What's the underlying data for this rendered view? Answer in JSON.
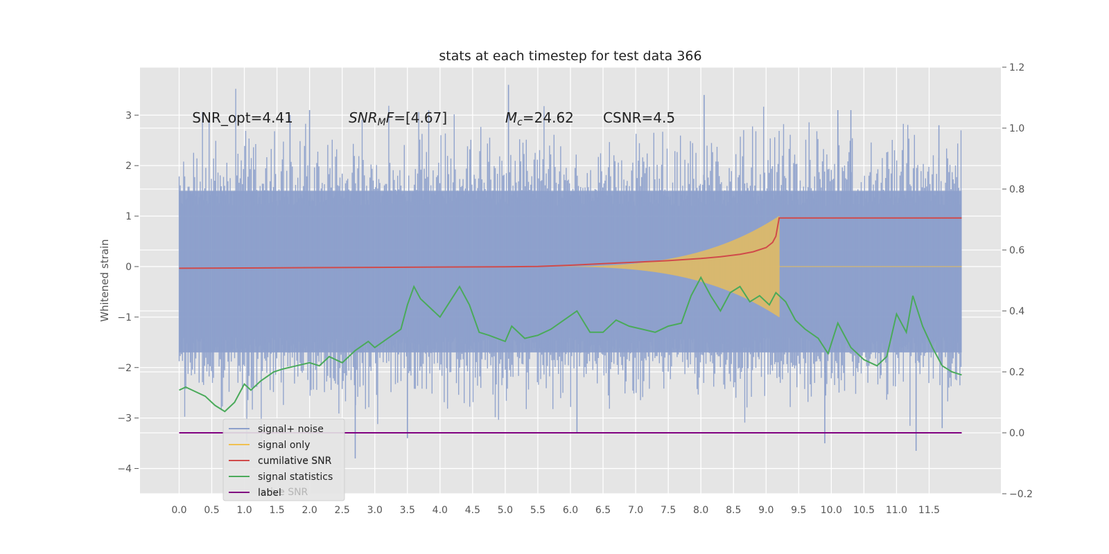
{
  "chart_data": {
    "type": "line",
    "title": "stats at each timestep for test data 366",
    "xlabel": "",
    "ylabel": "Whitened strain",
    "xlim": [
      -0.6,
      12.6
    ],
    "ylim": [
      -4.5,
      3.95
    ],
    "y2lim": [
      -0.2,
      1.2
    ],
    "grid": true,
    "x_ticks": [
      "0.0",
      "0.5",
      "1.0",
      "1.5",
      "2.0",
      "2.5",
      "3.0",
      "3.5",
      "4.0",
      "4.5",
      "5.0",
      "5.5",
      "6.0",
      "6.5",
      "7.0",
      "7.5",
      "8.0",
      "8.5",
      "9.0",
      "9.5",
      "10.0",
      "10.5",
      "11.0",
      "11.5"
    ],
    "y_ticks": [
      "3",
      "2",
      "1",
      "0",
      "−1",
      "−2",
      "−3",
      "−4"
    ],
    "y_tick_values": [
      3,
      2,
      1,
      0,
      -1,
      -2,
      -3,
      -4
    ],
    "y2_ticks": [
      "1.2",
      "1.0",
      "0.8",
      "0.6",
      "0.4",
      "0.2",
      "0.0",
      "−0.2"
    ],
    "y2_tick_values": [
      1.2,
      1.0,
      0.8,
      0.6,
      0.4,
      0.2,
      0.0,
      -0.2
    ],
    "annotations": [
      {
        "name": "snr-opt",
        "parts": [
          {
            "t": "SNR_opt=4.41"
          }
        ],
        "x": 0.2,
        "y": 2.85
      },
      {
        "name": "snr-mf",
        "parts": [
          {
            "t": "SNR",
            "i": true
          },
          {
            "t": "M",
            "i": true,
            "sub": true
          },
          {
            "t": "F",
            "i": true
          },
          {
            "t": "=[4.67]"
          }
        ],
        "x": 2.6,
        "y": 2.85
      },
      {
        "name": "mc",
        "parts": [
          {
            "t": "M",
            "i": true
          },
          {
            "t": "c",
            "i": true,
            "sub": true
          },
          {
            "t": "=24.62"
          }
        ],
        "x": 5.0,
        "y": 2.85
      },
      {
        "name": "csnr",
        "parts": [
          {
            "t": "CSNR=4.5"
          }
        ],
        "x": 6.5,
        "y": 2.85
      }
    ],
    "legend": {
      "placement": "lower-left",
      "entries": [
        {
          "label": "signal+ noise",
          "color": "#8da0cb"
        },
        {
          "label": "signal only",
          "color": "#f0c050"
        },
        {
          "label": "cumilative SNR",
          "color": "#d04a4a"
        },
        {
          "label": "signal statistics",
          "color": "#4aaa5a"
        },
        {
          "label": "label",
          "color": "#800080"
        }
      ],
      "ghost_text": [
        "cumilative SNR",
        "lative SNR"
      ]
    },
    "series": [
      {
        "name": "signal+ noise",
        "axis": "left",
        "color": "#8da0cb",
        "style": "noise",
        "x_range": [
          0.0,
          12.0
        ],
        "band_lo": -1.7,
        "band_hi": 1.5,
        "spikes": [
          {
            "x": 1.7,
            "y": 3.0
          },
          {
            "x": 2.0,
            "y": 3.1
          },
          {
            "x": 5.05,
            "y": 3.6
          },
          {
            "x": 8.05,
            "y": 3.4
          },
          {
            "x": 10.1,
            "y": 3.1
          },
          {
            "x": 10.3,
            "y": 3.1
          },
          {
            "x": 11.65,
            "y": 2.8
          },
          {
            "x": 2.7,
            "y": -3.8
          },
          {
            "x": 3.5,
            "y": -3.4
          },
          {
            "x": 6.1,
            "y": -3.3
          },
          {
            "x": 9.9,
            "y": -3.5
          },
          {
            "x": 11.3,
            "y": -3.65
          },
          {
            "x": 11.7,
            "y": -3.2
          },
          {
            "x": 6.0,
            "y": 1.1
          }
        ]
      },
      {
        "name": "signal only",
        "axis": "left",
        "color": "#f0c050",
        "style": "chirp",
        "chirp": {
          "t_start": 5.4,
          "t_merge": 9.2,
          "amp_max": 1.0,
          "t_end": 12.0
        }
      },
      {
        "name": "cumilative SNR",
        "axis": "right",
        "color": "#d04a4a",
        "x": [
          0.0,
          1.0,
          2.0,
          3.0,
          4.0,
          5.0,
          5.5,
          6.0,
          6.5,
          7.0,
          7.5,
          8.0,
          8.3,
          8.6,
          8.8,
          9.0,
          9.1,
          9.15,
          9.2,
          12.0
        ],
        "values": [
          0.54,
          0.541,
          0.542,
          0.543,
          0.544,
          0.545,
          0.546,
          0.55,
          0.555,
          0.56,
          0.565,
          0.572,
          0.578,
          0.586,
          0.594,
          0.608,
          0.625,
          0.645,
          0.705,
          0.705
        ]
      },
      {
        "name": "signal statistics",
        "axis": "right",
        "color": "#4aaa5a",
        "x": [
          0.0,
          0.1,
          0.2,
          0.4,
          0.55,
          0.7,
          0.85,
          1.0,
          1.1,
          1.25,
          1.45,
          1.6,
          1.8,
          2.0,
          2.15,
          2.3,
          2.5,
          2.7,
          2.9,
          3.0,
          3.2,
          3.4,
          3.5,
          3.6,
          3.7,
          3.85,
          4.0,
          4.15,
          4.3,
          4.45,
          4.6,
          4.75,
          5.0,
          5.1,
          5.3,
          5.5,
          5.7,
          5.9,
          6.1,
          6.3,
          6.5,
          6.7,
          6.9,
          7.1,
          7.3,
          7.5,
          7.7,
          7.85,
          8.0,
          8.15,
          8.3,
          8.45,
          8.6,
          8.75,
          8.9,
          9.05,
          9.15,
          9.3,
          9.45,
          9.6,
          9.8,
          9.95,
          10.1,
          10.3,
          10.5,
          10.7,
          10.85,
          11.0,
          11.15,
          11.25,
          11.4,
          11.55,
          11.7,
          11.85,
          12.0
        ],
        "values": [
          0.14,
          0.15,
          0.14,
          0.12,
          0.09,
          0.07,
          0.1,
          0.16,
          0.14,
          0.17,
          0.2,
          0.21,
          0.22,
          0.23,
          0.22,
          0.25,
          0.23,
          0.27,
          0.3,
          0.28,
          0.31,
          0.34,
          0.42,
          0.48,
          0.44,
          0.41,
          0.38,
          0.43,
          0.48,
          0.42,
          0.33,
          0.32,
          0.3,
          0.35,
          0.31,
          0.32,
          0.34,
          0.37,
          0.4,
          0.33,
          0.33,
          0.37,
          0.35,
          0.34,
          0.33,
          0.35,
          0.36,
          0.45,
          0.51,
          0.45,
          0.4,
          0.46,
          0.48,
          0.43,
          0.45,
          0.42,
          0.46,
          0.43,
          0.37,
          0.34,
          0.31,
          0.26,
          0.36,
          0.28,
          0.24,
          0.22,
          0.25,
          0.39,
          0.33,
          0.45,
          0.35,
          0.28,
          0.22,
          0.2,
          0.19
        ]
      },
      {
        "name": "label",
        "axis": "right",
        "color": "#800080",
        "x": [
          0.0,
          12.0
        ],
        "values": [
          0.0,
          0.0
        ]
      }
    ]
  }
}
